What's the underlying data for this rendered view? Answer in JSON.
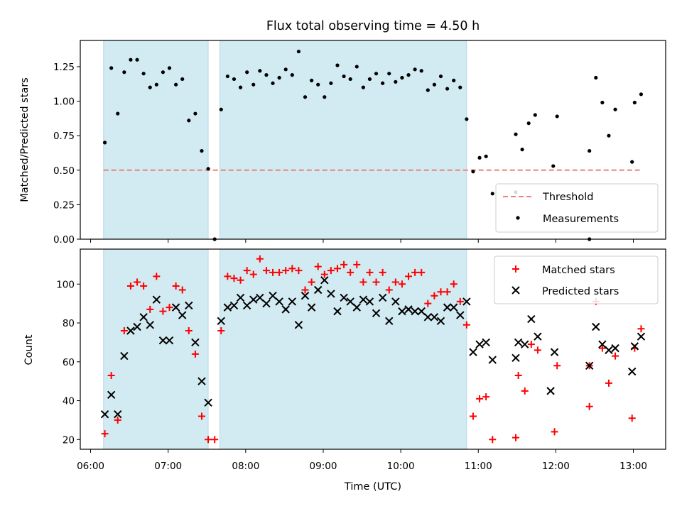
{
  "chart_data": {
    "type": "scatter",
    "title": "Flux total observing time = 4.50 h",
    "xlabel": "Time (UTC)",
    "x_ticks": [
      "06:00",
      "07:00",
      "08:00",
      "09:00",
      "10:00",
      "11:00",
      "12:00",
      "13:00"
    ],
    "xlim": [
      "05:52",
      "13:25"
    ],
    "shaded_intervals": [
      [
        "06:10",
        "07:31"
      ],
      [
        "07:40",
        "10:51"
      ]
    ],
    "shade_color": "#add8e6",
    "top": {
      "ylabel": "Matched/Predicted stars",
      "ylim": [
        0.0,
        1.44
      ],
      "y_ticks": [
        "0.00",
        "0.25",
        "0.50",
        "0.75",
        "1.00",
        "1.25"
      ],
      "threshold": {
        "name": "Threshold",
        "value": 0.5,
        "x_range": [
          "06:10",
          "13:05"
        ],
        "color": "#f08080"
      },
      "measurements_name": "Measurements",
      "legend_position": "lower right",
      "points": [
        [
          "06:11",
          0.7
        ],
        [
          "06:16",
          1.24
        ],
        [
          "06:21",
          0.91
        ],
        [
          "06:26",
          1.21
        ],
        [
          "06:31",
          1.3
        ],
        [
          "06:36",
          1.3
        ],
        [
          "06:41",
          1.2
        ],
        [
          "06:46",
          1.1
        ],
        [
          "06:51",
          1.12
        ],
        [
          "06:56",
          1.21
        ],
        [
          "07:01",
          1.24
        ],
        [
          "07:06",
          1.12
        ],
        [
          "07:11",
          1.16
        ],
        [
          "07:16",
          0.86
        ],
        [
          "07:21",
          0.91
        ],
        [
          "07:26",
          0.64
        ],
        [
          "07:31",
          0.51
        ],
        [
          "07:36",
          0.0
        ],
        [
          "07:41",
          0.94
        ],
        [
          "07:46",
          1.18
        ],
        [
          "07:51",
          1.16
        ],
        [
          "07:56",
          1.1
        ],
        [
          "08:01",
          1.21
        ],
        [
          "08:06",
          1.12
        ],
        [
          "08:11",
          1.22
        ],
        [
          "08:16",
          1.19
        ],
        [
          "08:21",
          1.13
        ],
        [
          "08:26",
          1.17
        ],
        [
          "08:31",
          1.23
        ],
        [
          "08:36",
          1.19
        ],
        [
          "08:41",
          1.36
        ],
        [
          "08:46",
          1.03
        ],
        [
          "08:51",
          1.15
        ],
        [
          "08:56",
          1.12
        ],
        [
          "09:01",
          1.03
        ],
        [
          "09:06",
          1.13
        ],
        [
          "09:11",
          1.26
        ],
        [
          "09:16",
          1.18
        ],
        [
          "09:21",
          1.16
        ],
        [
          "09:26",
          1.25
        ],
        [
          "09:31",
          1.1
        ],
        [
          "09:36",
          1.16
        ],
        [
          "09:41",
          1.2
        ],
        [
          "09:46",
          1.13
        ],
        [
          "09:51",
          1.2
        ],
        [
          "09:56",
          1.14
        ],
        [
          "10:01",
          1.17
        ],
        [
          "10:06",
          1.19
        ],
        [
          "10:11",
          1.23
        ],
        [
          "10:16",
          1.22
        ],
        [
          "10:21",
          1.08
        ],
        [
          "10:26",
          1.12
        ],
        [
          "10:31",
          1.18
        ],
        [
          "10:36",
          1.09
        ],
        [
          "10:41",
          1.15
        ],
        [
          "10:46",
          1.1
        ],
        [
          "10:51",
          0.87
        ],
        [
          "10:56",
          0.49
        ],
        [
          "11:01",
          0.59
        ],
        [
          "11:06",
          0.6
        ],
        [
          "11:11",
          0.33
        ],
        [
          "11:29",
          0.34
        ],
        [
          "11:29",
          0.76
        ],
        [
          "11:34",
          0.65
        ],
        [
          "11:39",
          0.84
        ],
        [
          "11:44",
          0.9
        ],
        [
          "11:58",
          0.53
        ],
        [
          "12:01",
          0.89
        ],
        [
          "12:26",
          0.0
        ],
        [
          "12:26",
          0.64
        ],
        [
          "12:31",
          1.17
        ],
        [
          "12:36",
          0.99
        ],
        [
          "12:41",
          0.75
        ],
        [
          "12:46",
          0.94
        ],
        [
          "12:59",
          0.56
        ],
        [
          "13:01",
          0.99
        ],
        [
          "13:06",
          1.05
        ]
      ]
    },
    "bottom": {
      "ylabel": "Count",
      "ylim": [
        15,
        118
      ],
      "y_ticks": [
        "20",
        "40",
        "60",
        "80",
        "100"
      ],
      "legend_position": "upper right",
      "series": [
        {
          "name": "Matched stars",
          "marker": "+",
          "color": "#ff0000",
          "points": [
            [
              "06:11",
              23
            ],
            [
              "06:16",
              53
            ],
            [
              "06:21",
              30
            ],
            [
              "06:26",
              76
            ],
            [
              "06:31",
              99
            ],
            [
              "06:36",
              101
            ],
            [
              "06:41",
              99
            ],
            [
              "06:46",
              87
            ],
            [
              "06:51",
              104
            ],
            [
              "06:56",
              86
            ],
            [
              "07:01",
              88
            ],
            [
              "07:06",
              99
            ],
            [
              "07:11",
              97
            ],
            [
              "07:16",
              76
            ],
            [
              "07:21",
              64
            ],
            [
              "07:26",
              32
            ],
            [
              "07:31",
              20
            ],
            [
              "07:36",
              20
            ],
            [
              "07:41",
              76
            ],
            [
              "07:46",
              104
            ],
            [
              "07:51",
              103
            ],
            [
              "07:56",
              102
            ],
            [
              "08:01",
              107
            ],
            [
              "08:06",
              105
            ],
            [
              "08:11",
              113
            ],
            [
              "08:16",
              107
            ],
            [
              "08:21",
              106
            ],
            [
              "08:26",
              106
            ],
            [
              "08:31",
              107
            ],
            [
              "08:36",
              108
            ],
            [
              "08:41",
              107
            ],
            [
              "08:46",
              97
            ],
            [
              "08:51",
              101
            ],
            [
              "08:56",
              109
            ],
            [
              "09:01",
              105
            ],
            [
              "09:06",
              107
            ],
            [
              "09:11",
              108
            ],
            [
              "09:16",
              110
            ],
            [
              "09:21",
              106
            ],
            [
              "09:26",
              110
            ],
            [
              "09:31",
              101
            ],
            [
              "09:36",
              106
            ],
            [
              "09:41",
              101
            ],
            [
              "09:46",
              106
            ],
            [
              "09:51",
              97
            ],
            [
              "09:56",
              101
            ],
            [
              "10:01",
              100
            ],
            [
              "10:06",
              104
            ],
            [
              "10:11",
              106
            ],
            [
              "10:16",
              106
            ],
            [
              "10:21",
              90
            ],
            [
              "10:26",
              94
            ],
            [
              "10:31",
              96
            ],
            [
              "10:36",
              96
            ],
            [
              "10:41",
              100
            ],
            [
              "10:46",
              91
            ],
            [
              "10:51",
              79
            ],
            [
              "10:56",
              32
            ],
            [
              "11:01",
              41
            ],
            [
              "11:06",
              42
            ],
            [
              "11:11",
              20
            ],
            [
              "11:29",
              21
            ],
            [
              "11:31",
              53
            ],
            [
              "11:36",
              45
            ],
            [
              "11:41",
              69
            ],
            [
              "11:46",
              66
            ],
            [
              "11:59",
              24
            ],
            [
              "12:01",
              58
            ],
            [
              "12:26",
              37
            ],
            [
              "12:26",
              58
            ],
            [
              "12:31",
              91
            ],
            [
              "12:36",
              67
            ],
            [
              "12:41",
              49
            ],
            [
              "12:46",
              63
            ],
            [
              "12:59",
              31
            ],
            [
              "13:01",
              67
            ],
            [
              "13:06",
              77
            ]
          ]
        },
        {
          "name": "Predicted stars",
          "marker": "x",
          "color": "#000000",
          "points": [
            [
              "06:11",
              33
            ],
            [
              "06:16",
              43
            ],
            [
              "06:21",
              33
            ],
            [
              "06:26",
              63
            ],
            [
              "06:31",
              76
            ],
            [
              "06:36",
              78
            ],
            [
              "06:41",
              83
            ],
            [
              "06:46",
              79
            ],
            [
              "06:51",
              92
            ],
            [
              "06:56",
              71
            ],
            [
              "07:01",
              71
            ],
            [
              "07:06",
              88
            ],
            [
              "07:11",
              84
            ],
            [
              "07:16",
              89
            ],
            [
              "07:21",
              70
            ],
            [
              "07:26",
              50
            ],
            [
              "07:31",
              39
            ],
            [
              "07:41",
              81
            ],
            [
              "07:46",
              88
            ],
            [
              "07:51",
              89
            ],
            [
              "07:56",
              93
            ],
            [
              "08:01",
              89
            ],
            [
              "08:06",
              92
            ],
            [
              "08:11",
              93
            ],
            [
              "08:16",
              90
            ],
            [
              "08:21",
              94
            ],
            [
              "08:26",
              91
            ],
            [
              "08:31",
              87
            ],
            [
              "08:36",
              91
            ],
            [
              "08:41",
              79
            ],
            [
              "08:46",
              94
            ],
            [
              "08:51",
              88
            ],
            [
              "08:56",
              97
            ],
            [
              "09:01",
              102
            ],
            [
              "09:06",
              95
            ],
            [
              "09:11",
              86
            ],
            [
              "09:16",
              93
            ],
            [
              "09:21",
              91
            ],
            [
              "09:26",
              88
            ],
            [
              "09:31",
              92
            ],
            [
              "09:36",
              91
            ],
            [
              "09:41",
              85
            ],
            [
              "09:46",
              93
            ],
            [
              "09:51",
              81
            ],
            [
              "09:56",
              91
            ],
            [
              "10:01",
              86
            ],
            [
              "10:06",
              87
            ],
            [
              "10:11",
              86
            ],
            [
              "10:16",
              86
            ],
            [
              "10:21",
              83
            ],
            [
              "10:26",
              83
            ],
            [
              "10:31",
              81
            ],
            [
              "10:36",
              88
            ],
            [
              "10:41",
              88
            ],
            [
              "10:46",
              84
            ],
            [
              "10:51",
              91
            ],
            [
              "10:56",
              65
            ],
            [
              "11:01",
              69
            ],
            [
              "11:06",
              70
            ],
            [
              "11:11",
              61
            ],
            [
              "11:29",
              62
            ],
            [
              "11:31",
              70
            ],
            [
              "11:36",
              69
            ],
            [
              "11:41",
              82
            ],
            [
              "11:46",
              73
            ],
            [
              "11:56",
              45
            ],
            [
              "11:59",
              65
            ],
            [
              "12:26",
              58
            ],
            [
              "12:31",
              78
            ],
            [
              "12:36",
              69
            ],
            [
              "12:41",
              66
            ],
            [
              "12:46",
              67
            ],
            [
              "12:59",
              55
            ],
            [
              "13:01",
              68
            ],
            [
              "13:06",
              73
            ]
          ]
        }
      ]
    }
  }
}
